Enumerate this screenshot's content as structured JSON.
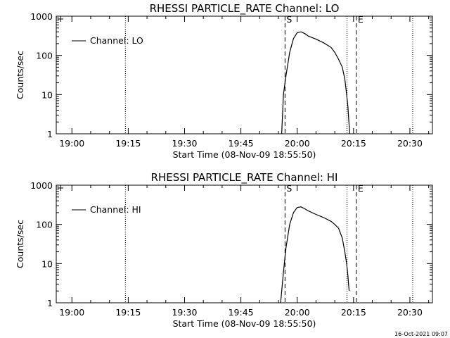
{
  "chart_data": [
    {
      "type": "line",
      "title": "RHESSI PARTICLE_RATE Channel: LO",
      "xlabel": "Start Time (08-Nov-09 18:55:50)",
      "ylabel": "Counts/sec",
      "yscale": "log",
      "ylim": [
        1,
        1000
      ],
      "xlim": [
        "18:55:50",
        "20:36:00"
      ],
      "xticks": [
        "19:00",
        "19:15",
        "19:30",
        "19:45",
        "20:00",
        "20:15",
        "20:30"
      ],
      "yticks": [
        "1",
        "10",
        "100",
        "1000"
      ],
      "legend": {
        "position": "top-left",
        "entries": [
          "Channel: LO"
        ]
      },
      "grid": false,
      "series": [
        {
          "name": "Channel: LO",
          "x": [
            "19:55:52",
            "19:56:20",
            "19:57:00",
            "19:58:00",
            "19:59:00",
            "20:00:00",
            "20:01:00",
            "20:02:00",
            "20:03:00",
            "20:05:00",
            "20:07:00",
            "20:09:00",
            "20:10:00",
            "20:11:00",
            "20:12:00",
            "20:12:40",
            "20:13:10",
            "20:13:30",
            "20:13:45",
            "20:14:00"
          ],
          "y": [
            1,
            10,
            30,
            120,
            270,
            380,
            400,
            360,
            310,
            260,
            210,
            160,
            120,
            80,
            50,
            25,
            10,
            5,
            2,
            1
          ]
        }
      ],
      "markers": [
        {
          "time": "19:14:15",
          "style": "dotted",
          "label": ""
        },
        {
          "time": "19:56:45",
          "style": "dashed",
          "label": "S"
        },
        {
          "time": "20:13:15",
          "style": "dotted",
          "label": ""
        },
        {
          "time": "20:15:45",
          "style": "dashed",
          "label": "E"
        },
        {
          "time": "20:30:45",
          "style": "dotted",
          "label": ""
        }
      ]
    },
    {
      "type": "line",
      "title": "RHESSI PARTICLE_RATE Channel: HI",
      "xlabel": "Start Time (08-Nov-09 18:55:50)",
      "ylabel": "Counts/sec",
      "yscale": "log",
      "ylim": [
        1,
        1000
      ],
      "xlim": [
        "18:55:50",
        "20:36:00"
      ],
      "xticks": [
        "19:00",
        "19:15",
        "19:30",
        "19:45",
        "20:00",
        "20:15",
        "20:30"
      ],
      "yticks": [
        "1",
        "10",
        "100",
        "1000"
      ],
      "legend": {
        "position": "top-left",
        "entries": [
          "Channel: HI"
        ]
      },
      "grid": false,
      "series": [
        {
          "name": "Channel: HI",
          "x": [
            "19:55:35",
            "19:56:20",
            "19:57:00",
            "19:58:00",
            "19:59:00",
            "20:00:00",
            "20:01:00",
            "20:02:00",
            "20:03:00",
            "20:05:00",
            "20:07:00",
            "20:09:00",
            "20:10:00",
            "20:11:00",
            "20:12:00",
            "20:12:40",
            "20:13:10",
            "20:13:30",
            "20:13:40",
            "20:13:50"
          ],
          "y": [
            1,
            6,
            25,
            100,
            200,
            270,
            280,
            250,
            220,
            180,
            150,
            120,
            100,
            80,
            45,
            20,
            10,
            5,
            3,
            2
          ]
        }
      ],
      "markers": [
        {
          "time": "19:14:15",
          "style": "dotted",
          "label": ""
        },
        {
          "time": "19:56:45",
          "style": "dashed",
          "label": "S"
        },
        {
          "time": "20:13:15",
          "style": "dotted",
          "label": ""
        },
        {
          "time": "20:15:45",
          "style": "dashed",
          "label": "E"
        },
        {
          "time": "20:30:45",
          "style": "dotted",
          "label": ""
        }
      ]
    }
  ],
  "footer": {
    "timestamp": "16-Oct-2021 09:07"
  }
}
